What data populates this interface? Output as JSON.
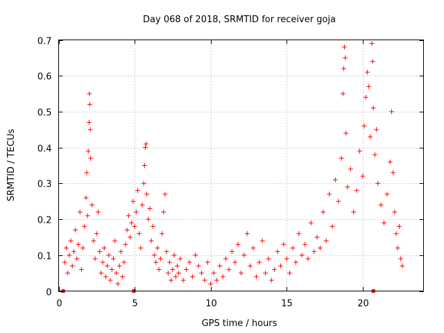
{
  "chart_data": {
    "type": "scatter",
    "title": "Day 068 of 2018, SRMTID for receiver goja",
    "xlabel": "GPS time / hours",
    "ylabel": "SRMTID / TECUs",
    "xlim": [
      0,
      24
    ],
    "ylim": [
      0,
      0.7
    ],
    "xticks": [
      0,
      5,
      10,
      15,
      20
    ],
    "yticks": [
      0,
      0.1,
      0.2,
      0.3,
      0.4,
      0.5,
      0.6,
      0.7
    ],
    "ytick_labels": [
      "0",
      "0.1",
      "0.2",
      "0.3",
      "0.4",
      "0.5",
      "0.6",
      "0.7"
    ],
    "grid": true,
    "marker": "plus",
    "color": "#ff0000",
    "series": [
      {
        "name": "SRMTID",
        "points": [
          [
            0.4,
            0.08
          ],
          [
            0.5,
            0.12
          ],
          [
            0.6,
            0.05
          ],
          [
            0.7,
            0.1
          ],
          [
            0.8,
            0.14
          ],
          [
            0.9,
            0.07
          ],
          [
            1.0,
            0.11
          ],
          [
            1.1,
            0.17
          ],
          [
            1.2,
            0.09
          ],
          [
            1.3,
            0.13
          ],
          [
            1.4,
            0.22
          ],
          [
            1.5,
            0.06
          ],
          [
            1.6,
            0.12
          ],
          [
            1.7,
            0.18
          ],
          [
            1.8,
            0.26
          ],
          [
            1.85,
            0.33
          ],
          [
            1.9,
            0.21
          ],
          [
            1.95,
            0.39
          ],
          [
            2.0,
            0.47
          ],
          [
            2.02,
            0.55
          ],
          [
            2.05,
            0.52
          ],
          [
            2.08,
            0.45
          ],
          [
            2.1,
            0.37
          ],
          [
            2.2,
            0.24
          ],
          [
            2.3,
            0.14
          ],
          [
            2.4,
            0.09
          ],
          [
            2.5,
            0.16
          ],
          [
            2.6,
            0.22
          ],
          [
            2.7,
            0.11
          ],
          [
            2.8,
            0.05
          ],
          [
            2.9,
            0.08
          ],
          [
            3.0,
            0.12
          ],
          [
            3.1,
            0.04
          ],
          [
            3.2,
            0.07
          ],
          [
            3.3,
            0.1
          ],
          [
            3.4,
            0.03
          ],
          [
            3.5,
            0.06
          ],
          [
            3.6,
            0.09
          ],
          [
            3.7,
            0.14
          ],
          [
            3.8,
            0.05
          ],
          [
            3.9,
            0.02
          ],
          [
            4.0,
            0.07
          ],
          [
            4.1,
            0.11
          ],
          [
            4.2,
            0.04
          ],
          [
            4.3,
            0.08
          ],
          [
            4.4,
            0.13
          ],
          [
            4.5,
            0.17
          ],
          [
            4.6,
            0.21
          ],
          [
            4.7,
            0.15
          ],
          [
            4.8,
            0.19
          ],
          [
            4.9,
            0.25
          ],
          [
            5.0,
            0.18
          ],
          [
            5.1,
            0.22
          ],
          [
            5.2,
            0.28
          ],
          [
            5.3,
            0.16
          ],
          [
            5.4,
            0.12
          ],
          [
            5.5,
            0.24
          ],
          [
            5.6,
            0.3
          ],
          [
            5.65,
            0.35
          ],
          [
            5.7,
            0.4
          ],
          [
            5.75,
            0.41
          ],
          [
            5.8,
            0.27
          ],
          [
            5.9,
            0.2
          ],
          [
            6.0,
            0.23
          ],
          [
            6.1,
            0.14
          ],
          [
            6.2,
            0.18
          ],
          [
            6.3,
            0.1
          ],
          [
            6.4,
            0.08
          ],
          [
            6.5,
            0.12
          ],
          [
            6.6,
            0.06
          ],
          [
            6.7,
            0.09
          ],
          [
            6.8,
            0.16
          ],
          [
            6.9,
            0.22
          ],
          [
            7.0,
            0.27
          ],
          [
            7.1,
            0.11
          ],
          [
            7.2,
            0.05
          ],
          [
            7.3,
            0.08
          ],
          [
            7.4,
            0.03
          ],
          [
            7.5,
            0.06
          ],
          [
            7.6,
            0.1
          ],
          [
            7.7,
            0.04
          ],
          [
            7.8,
            0.07
          ],
          [
            7.9,
            0.05
          ],
          [
            8.0,
            0.09
          ],
          [
            8.2,
            0.03
          ],
          [
            8.4,
            0.06
          ],
          [
            8.6,
            0.08
          ],
          [
            8.8,
            0.04
          ],
          [
            9.0,
            0.1
          ],
          [
            9.2,
            0.07
          ],
          [
            9.4,
            0.05
          ],
          [
            9.6,
            0.03
          ],
          [
            9.8,
            0.08
          ],
          [
            10.0,
            0.02
          ],
          [
            10.2,
            0.05
          ],
          [
            10.4,
            0.03
          ],
          [
            10.6,
            0.07
          ],
          [
            10.8,
            0.04
          ],
          [
            11.0,
            0.09
          ],
          [
            11.2,
            0.06
          ],
          [
            11.4,
            0.11
          ],
          [
            11.6,
            0.08
          ],
          [
            11.8,
            0.13
          ],
          [
            12.0,
            0.05
          ],
          [
            12.2,
            0.1
          ],
          [
            12.4,
            0.16
          ],
          [
            12.6,
            0.07
          ],
          [
            12.8,
            0.12
          ],
          [
            13.0,
            0.04
          ],
          [
            13.2,
            0.08
          ],
          [
            13.4,
            0.14
          ],
          [
            13.6,
            0.05
          ],
          [
            13.8,
            0.09
          ],
          [
            14.0,
            0.03
          ],
          [
            14.2,
            0.06
          ],
          [
            14.4,
            0.11
          ],
          [
            14.6,
            0.07
          ],
          [
            14.8,
            0.13
          ],
          [
            15.0,
            0.09
          ],
          [
            15.2,
            0.05
          ],
          [
            15.4,
            0.12
          ],
          [
            15.6,
            0.08
          ],
          [
            15.8,
            0.16
          ],
          [
            16.0,
            0.1
          ],
          [
            16.2,
            0.13
          ],
          [
            16.4,
            0.09
          ],
          [
            16.6,
            0.19
          ],
          [
            16.8,
            0.11
          ],
          [
            17.0,
            0.15
          ],
          [
            17.2,
            0.12
          ],
          [
            17.4,
            0.22
          ],
          [
            17.6,
            0.14
          ],
          [
            17.8,
            0.27
          ],
          [
            18.0,
            0.18
          ],
          [
            18.2,
            0.31
          ],
          [
            18.4,
            0.25
          ],
          [
            18.6,
            0.37
          ],
          [
            18.7,
            0.55
          ],
          [
            18.75,
            0.62
          ],
          [
            18.8,
            0.68
          ],
          [
            18.85,
            0.65
          ],
          [
            18.9,
            0.44
          ],
          [
            19.0,
            0.29
          ],
          [
            19.2,
            0.34
          ],
          [
            19.4,
            0.22
          ],
          [
            19.6,
            0.28
          ],
          [
            19.8,
            0.39
          ],
          [
            20.0,
            0.32
          ],
          [
            20.1,
            0.46
          ],
          [
            20.2,
            0.54
          ],
          [
            20.3,
            0.61
          ],
          [
            20.4,
            0.57
          ],
          [
            20.5,
            0.43
          ],
          [
            20.6,
            0.69
          ],
          [
            20.65,
            0.64
          ],
          [
            20.7,
            0.51
          ],
          [
            20.8,
            0.38
          ],
          [
            20.9,
            0.45
          ],
          [
            21.0,
            0.3
          ],
          [
            21.2,
            0.24
          ],
          [
            21.4,
            0.19
          ],
          [
            21.6,
            0.27
          ],
          [
            21.8,
            0.36
          ],
          [
            21.9,
            0.5
          ],
          [
            22.0,
            0.33
          ],
          [
            22.1,
            0.22
          ],
          [
            22.2,
            0.16
          ],
          [
            22.3,
            0.12
          ],
          [
            22.4,
            0.18
          ],
          [
            22.5,
            0.09
          ],
          [
            22.6,
            0.07
          ]
        ]
      }
    ],
    "baseline_markers": [
      0.3,
      4.95,
      20.7
    ]
  }
}
